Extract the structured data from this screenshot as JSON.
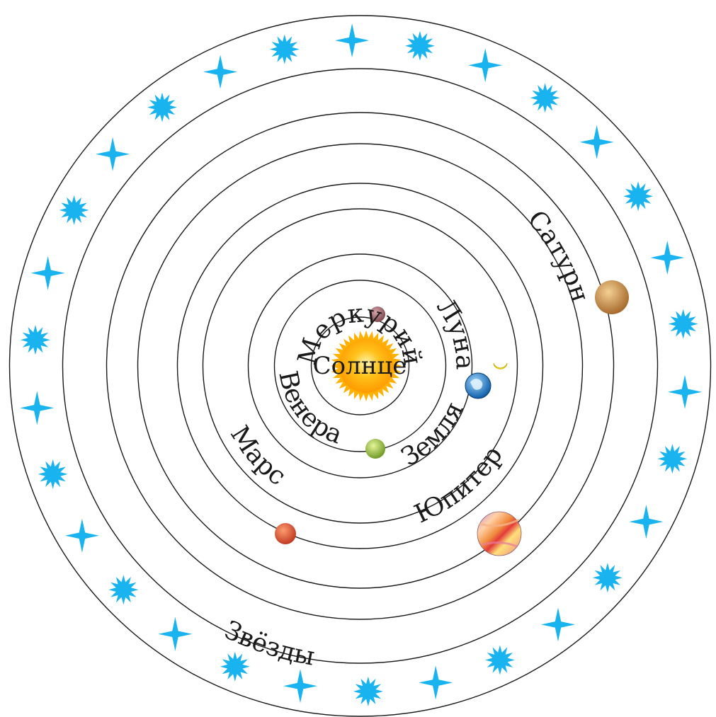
{
  "labels": {
    "sun": "Солнце",
    "mercury": "Меркурий",
    "venus": "Венера",
    "moon": "Луна",
    "earth": "Земля",
    "mars": "Марс",
    "jupiter": "Юпитер",
    "saturn": "Сатурн",
    "stars": "Звёзды"
  },
  "colors": {
    "orbit_stroke": "#1a1a1a",
    "star_fill": "#19b4f0",
    "sun_fill": "#ffb000",
    "moon_fill": "#ffe600",
    "mercury_fill": "#a06a6f",
    "venus_fill": "#a5c94a",
    "earth_fill": "#2e8dd8",
    "mars_fill": "#e0553a",
    "saturn_fill": "#d49a52"
  },
  "star_count": 30,
  "icons": [
    "sun-icon",
    "moon-icon",
    "planet-icon",
    "star-icon"
  ]
}
